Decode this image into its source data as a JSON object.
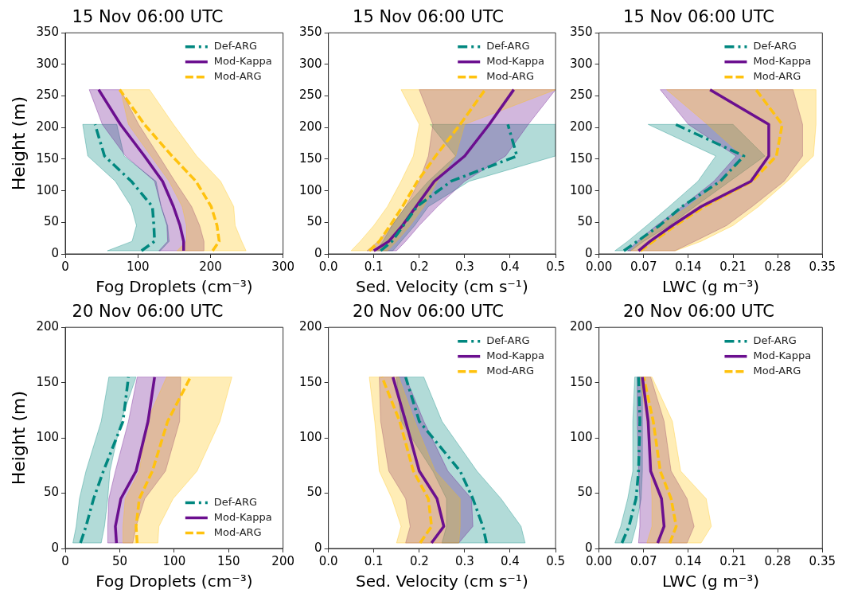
{
  "chart_data": [
    {
      "type": "line",
      "title": "15 Nov 06:00 UTC",
      "xlabel": "Fog Droplets (cm⁻³)",
      "ylabel": "Height (m)",
      "orientation": "horizontal",
      "xlim": [
        0,
        300
      ],
      "xticks": [
        0,
        100,
        200,
        300
      ],
      "ylim": [
        0,
        350
      ],
      "yticks": [
        0,
        50,
        100,
        150,
        200,
        250,
        300,
        350
      ],
      "legend": "top right",
      "series": [
        {
          "name": "Def-ARG",
          "color": "#00877f",
          "line_style": "dashdot",
          "x": [
            5,
            20,
            45,
            75,
            115,
            155,
            205
          ],
          "values": [
            105,
            123,
            122,
            120,
            91,
            54,
            41
          ],
          "lower": [
            58,
            92,
            98,
            91,
            69,
            31,
            24
          ],
          "upper": [
            131,
            143,
            141,
            132,
            125,
            81,
            71
          ]
        },
        {
          "name": "Mod-Kappa",
          "color": "#6b0f8f",
          "line_style": "solid",
          "x": [
            5,
            20,
            45,
            75,
            115,
            155,
            205,
            260
          ],
          "values": [
            163,
            163,
            158,
            149,
            134,
            109,
            76,
            46
          ],
          "lower": [
            129,
            141,
            140,
            132,
            123,
            83,
            51,
            33
          ],
          "upper": [
            191,
            191,
            185,
            174,
            151,
            129,
            101,
            76
          ]
        },
        {
          "name": "Mod-ARG",
          "color": "#ffc20e",
          "line_style": "dashed",
          "x": [
            5,
            20,
            45,
            75,
            115,
            155,
            205,
            260
          ],
          "values": [
            203,
            212,
            209,
            201,
            180,
            147,
            109,
            75
          ],
          "lower": [
            154,
            167,
            167,
            161,
            143,
            118,
            87,
            76
          ],
          "upper": [
            249,
            243,
            234,
            232,
            214,
            181,
            149,
            116
          ]
        }
      ]
    },
    {
      "type": "line",
      "title": "15 Nov 06:00 UTC",
      "xlabel": "Sed. Velocity (cm s⁻¹)",
      "orientation": "horizontal",
      "xlim": [
        0,
        0.5
      ],
      "xticks": [
        {
          "value": 0,
          "label": "0.0"
        },
        0.1,
        0.2,
        0.3,
        0.4,
        0.5
      ],
      "ylim": [
        0,
        350
      ],
      "yticks": [
        0,
        50,
        100,
        150,
        200,
        250,
        300,
        350
      ],
      "legend": "top right",
      "series": [
        {
          "name": "Def-ARG",
          "color": "#00877f",
          "line_style": "dashdot",
          "x": [
            5,
            20,
            45,
            75,
            115,
            155,
            205
          ],
          "values": [
            0.115,
            0.14,
            0.165,
            0.195,
            0.27,
            0.415,
            0.395
          ],
          "lower": [
            0.105,
            0.12,
            0.14,
            0.17,
            0.22,
            0.28,
            0.224
          ],
          "upper": [
            0.142,
            0.16,
            0.19,
            0.22,
            0.31,
            0.5,
            0.5
          ]
        },
        {
          "name": "Mod-Kappa",
          "color": "#6b0f8f",
          "line_style": "solid",
          "x": [
            5,
            20,
            45,
            75,
            115,
            155,
            205,
            260
          ],
          "values": [
            0.1,
            0.133,
            0.163,
            0.193,
            0.233,
            0.3,
            0.354,
            0.408
          ],
          "lower": [
            0.085,
            0.11,
            0.14,
            0.17,
            0.2,
            0.22,
            0.23,
            0.2
          ],
          "upper": [
            0.15,
            0.17,
            0.2,
            0.24,
            0.3,
            0.39,
            0.44,
            0.5
          ]
        },
        {
          "name": "Mod-ARG",
          "color": "#ffc20e",
          "line_style": "dashed",
          "x": [
            5,
            20,
            45,
            75,
            115,
            155,
            205,
            260
          ],
          "values": [
            0.09,
            0.112,
            0.136,
            0.163,
            0.196,
            0.236,
            0.29,
            0.345
          ],
          "lower": [
            0.05,
            0.07,
            0.1,
            0.13,
            0.16,
            0.187,
            0.2,
            0.16
          ],
          "upper": [
            0.13,
            0.15,
            0.18,
            0.21,
            0.24,
            0.28,
            0.3,
            0.5
          ]
        }
      ]
    },
    {
      "type": "line",
      "title": "15 Nov 06:00 UTC",
      "xlabel": "LWC (g m⁻³)",
      "orientation": "horizontal",
      "xlim": [
        0,
        0.35
      ],
      "xticks": [
        {
          "value": 0,
          "label": "0.00"
        },
        {
          "value": 0.07,
          "label": "0.07"
        },
        {
          "value": 0.14,
          "label": "0.14"
        },
        {
          "value": 0.21,
          "label": "0.21"
        },
        {
          "value": 0.28,
          "label": "0.28"
        },
        {
          "value": 0.35,
          "label": "0.35"
        }
      ],
      "ylim": [
        0,
        350
      ],
      "yticks": [
        0,
        50,
        100,
        150,
        200,
        250,
        300,
        350
      ],
      "legend": "top right",
      "series": [
        {
          "name": "Def-ARG",
          "color": "#00877f",
          "line_style": "dashdot",
          "x": [
            5,
            20,
            45,
            75,
            115,
            155,
            205
          ],
          "values": [
            0.039,
            0.06,
            0.095,
            0.13,
            0.19,
            0.227,
            0.12
          ],
          "lower": [
            0.025,
            0.045,
            0.075,
            0.11,
            0.155,
            0.183,
            0.077
          ],
          "upper": [
            0.05,
            0.07,
            0.11,
            0.15,
            0.205,
            0.26,
            0.21
          ]
        },
        {
          "name": "Mod-Kappa",
          "color": "#6b0f8f",
          "line_style": "solid",
          "x": [
            5,
            20,
            45,
            75,
            115,
            155,
            205,
            260
          ],
          "values": [
            0.062,
            0.08,
            0.115,
            0.16,
            0.238,
            0.266,
            0.266,
            0.174
          ],
          "lower": [
            0.045,
            0.06,
            0.09,
            0.13,
            0.18,
            0.215,
            0.14,
            0.096
          ],
          "upper": [
            0.119,
            0.15,
            0.2,
            0.24,
            0.29,
            0.319,
            0.319,
            0.304
          ]
        },
        {
          "name": "Mod-ARG",
          "color": "#ffc20e",
          "line_style": "dashed",
          "x": [
            5,
            20,
            45,
            75,
            115,
            155,
            205,
            260
          ],
          "values": [
            0.065,
            0.085,
            0.12,
            0.165,
            0.24,
            0.278,
            0.287,
            0.246
          ],
          "lower": [
            0.05,
            0.065,
            0.095,
            0.14,
            0.19,
            0.225,
            0.17,
            0.106
          ],
          "upper": [
            0.12,
            0.16,
            0.21,
            0.25,
            0.295,
            0.336,
            0.34,
            0.34
          ]
        }
      ]
    },
    {
      "type": "line",
      "title": "20 Nov 06:00 UTC",
      "xlabel": "Fog Droplets (cm⁻³)",
      "ylabel": "Height (m)",
      "orientation": "horizontal",
      "xlim": [
        0,
        200
      ],
      "xticks": [
        0,
        50,
        100,
        150,
        200
      ],
      "ylim": [
        0,
        200
      ],
      "yticks": [
        0,
        50,
        100,
        150,
        200
      ],
      "legend": "bottom right",
      "series": [
        {
          "name": "Def-ARG",
          "color": "#00877f",
          "line_style": "dashdot",
          "x": [
            5,
            20,
            45,
            70,
            115,
            155
          ],
          "values": [
            14,
            19,
            26,
            35,
            53,
            58
          ],
          "lower": [
            7,
            10,
            13,
            19,
            33,
            40
          ],
          "upper": [
            33,
            36,
            39,
            41,
            51,
            65
          ]
        },
        {
          "name": "Mod-Kappa",
          "color": "#6b0f8f",
          "line_style": "solid",
          "x": [
            5,
            20,
            45,
            70,
            115,
            155
          ],
          "values": [
            47,
            46,
            51,
            65,
            76,
            82
          ],
          "lower": [
            39,
            39,
            40,
            46,
            58,
            66
          ],
          "upper": [
            62,
            65,
            73,
            92,
            105,
            106
          ]
        },
        {
          "name": "Mod-ARG",
          "color": "#ffc20e",
          "line_style": "dashed",
          "x": [
            5,
            20,
            45,
            70,
            115,
            155
          ],
          "values": [
            66,
            65,
            68,
            80,
            94,
            115
          ],
          "lower": [
            53,
            53,
            55,
            68,
            75,
            93
          ],
          "upper": [
            85,
            86,
            99,
            121,
            142,
            153
          ]
        }
      ]
    },
    {
      "type": "line",
      "title": "20 Nov 06:00 UTC",
      "xlabel": "Sed. Velocity (cm s⁻¹)",
      "orientation": "horizontal",
      "xlim": [
        0,
        0.5
      ],
      "xticks": [
        {
          "value": 0,
          "label": "0.0"
        },
        0.1,
        0.2,
        0.3,
        0.4,
        0.5
      ],
      "ylim": [
        0,
        200
      ],
      "yticks": [
        0,
        50,
        100,
        150,
        200
      ],
      "legend": "top right",
      "series": [
        {
          "name": "Def-ARG",
          "color": "#00877f",
          "line_style": "dashdot",
          "x": [
            5,
            20,
            45,
            70,
            115,
            155
          ],
          "values": [
            0.348,
            0.34,
            0.318,
            0.29,
            0.2,
            0.17
          ],
          "lower": [
            0.25,
            0.26,
            0.26,
            0.23,
            0.16,
            0.15
          ],
          "upper": [
            0.433,
            0.424,
            0.38,
            0.327,
            0.25,
            0.21
          ]
        },
        {
          "name": "Mod-Kappa",
          "color": "#6b0f8f",
          "line_style": "solid",
          "x": [
            5,
            20,
            45,
            70,
            115,
            155
          ],
          "values": [
            0.227,
            0.254,
            0.239,
            0.2,
            0.17,
            0.142
          ],
          "lower": [
            0.17,
            0.18,
            0.17,
            0.133,
            0.115,
            0.112
          ],
          "upper": [
            0.287,
            0.318,
            0.315,
            0.263,
            0.21,
            0.17
          ]
        },
        {
          "name": "Mod-ARG",
          "color": "#ffc20e",
          "line_style": "dashed",
          "x": [
            5,
            20,
            45,
            70,
            115,
            155
          ],
          "values": [
            0.202,
            0.227,
            0.22,
            0.187,
            0.157,
            0.118
          ],
          "lower": [
            0.15,
            0.16,
            0.14,
            0.112,
            0.102,
            0.09
          ],
          "upper": [
            0.287,
            0.29,
            0.29,
            0.235,
            0.19,
            0.155
          ]
        }
      ]
    },
    {
      "type": "line",
      "title": "20 Nov 06:00 UTC",
      "xlabel": "LWC (g m⁻³)",
      "orientation": "horizontal",
      "xlim": [
        0,
        0.35
      ],
      "xticks": [
        {
          "value": 0,
          "label": "0.00"
        },
        {
          "value": 0.07,
          "label": "0.07"
        },
        {
          "value": 0.14,
          "label": "0.14"
        },
        {
          "value": 0.21,
          "label": "0.21"
        },
        {
          "value": 0.28,
          "label": "0.28"
        },
        {
          "value": 0.35,
          "label": "0.35"
        }
      ],
      "ylim": [
        0,
        200
      ],
      "yticks": [
        0,
        50,
        100,
        150,
        200
      ],
      "legend": "top right",
      "series": [
        {
          "name": "Def-ARG",
          "color": "#00877f",
          "line_style": "dashdot",
          "x": [
            5,
            20,
            45,
            70,
            115,
            155
          ],
          "values": [
            0.036,
            0.047,
            0.058,
            0.062,
            0.064,
            0.062
          ],
          "lower": [
            0.025,
            0.034,
            0.045,
            0.053,
            0.053,
            0.056
          ],
          "upper": [
            0.051,
            0.058,
            0.066,
            0.068,
            0.068,
            0.068
          ]
        },
        {
          "name": "Mod-Kappa",
          "color": "#6b0f8f",
          "line_style": "solid",
          "x": [
            5,
            20,
            45,
            70,
            115,
            155
          ],
          "values": [
            0.092,
            0.102,
            0.098,
            0.081,
            0.077,
            0.068
          ],
          "lower": [
            0.062,
            0.064,
            0.064,
            0.062,
            0.06,
            0.06
          ],
          "upper": [
            0.138,
            0.149,
            0.138,
            0.113,
            0.102,
            0.081
          ]
        },
        {
          "name": "Mod-ARG",
          "color": "#ffc20e",
          "line_style": "dashed",
          "x": [
            5,
            20,
            45,
            70,
            115,
            155
          ],
          "values": [
            0.111,
            0.121,
            0.113,
            0.096,
            0.085,
            0.07
          ],
          "lower": [
            0.075,
            0.083,
            0.083,
            0.081,
            0.075,
            0.064
          ],
          "upper": [
            0.16,
            0.176,
            0.168,
            0.128,
            0.115,
            0.083
          ]
        }
      ]
    }
  ]
}
